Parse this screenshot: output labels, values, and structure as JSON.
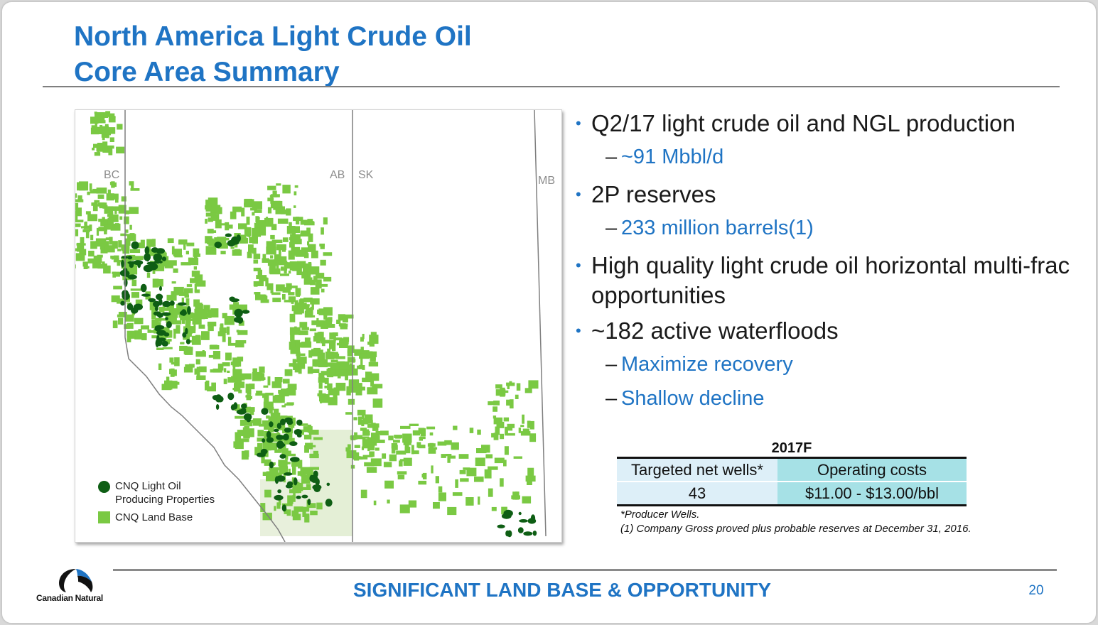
{
  "title": {
    "line1": "North America Light Crude Oil",
    "line2": "Core Area Summary"
  },
  "map": {
    "provinces": [
      "BC",
      "AB",
      "SK",
      "MB"
    ],
    "legend": {
      "producing_line1": "CNQ Light Oil",
      "producing_line2": "Producing Properties",
      "land_base": "CNQ Land Base"
    },
    "colors": {
      "land_base": "#7ac943",
      "producing": "#0e5e14",
      "border": "#7f7f7f"
    }
  },
  "bullets": [
    {
      "text": "Q2/17 light crude oil and NGL production",
      "subs": [
        "~91 Mbbl/d"
      ]
    },
    {
      "text": "2P reserves",
      "subs": [
        "233 million barrels(1)"
      ]
    },
    {
      "text": "High quality light crude oil horizontal multi-frac opportunities",
      "subs": []
    },
    {
      "text": "~182 active waterfloods",
      "subs": [
        "Maximize recovery",
        "Shallow decline"
      ]
    }
  ],
  "table": {
    "title": "2017F",
    "header": [
      "Targeted net wells*",
      "Operating costs"
    ],
    "row": [
      "43",
      "$11.00 - $13.00/bbl"
    ]
  },
  "notes": {
    "producer": "*Producer Wells.",
    "reserves": "(1) Company Gross proved plus probable reserves at December 31, 2016."
  },
  "footer": {
    "tagline": "SIGNIFICANT LAND BASE & OPPORTUNITY",
    "page": "20",
    "logo_text": "Canadian Natural"
  },
  "colors": {
    "accent": "#1f74c4",
    "rule": "#7f7f7f"
  }
}
